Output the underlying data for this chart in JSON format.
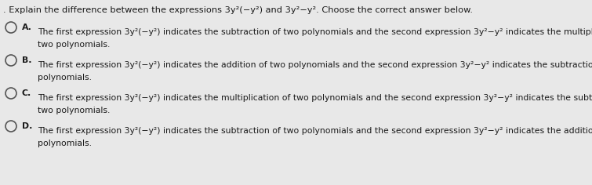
{
  "bg_color": "#e8e8e8",
  "title": ". Explain the difference between the expressions 3y²(−y²) and 3y²−y². Choose the correct answer below.",
  "options": [
    {
      "letter": "A.",
      "line1": "The first expression 3y²(−y²) indicates the subtraction of two polynomials and the second expression 3y²−y² indicates the multiplication of",
      "line2": "two polynomials."
    },
    {
      "letter": "B.",
      "line1": "The first expression 3y²(−y²) indicates the addition of two polynomials and the second expression 3y²−y² indicates the subtraction of two",
      "line2": "polynomials."
    },
    {
      "letter": "C.",
      "line1": "The first expression 3y²(−y²) indicates the multiplication of two polynomials and the second expression 3y²−y² indicates the subtraction of",
      "line2": "two polynomials."
    },
    {
      "letter": "D.",
      "line1": "The first expression 3y²(−y²) indicates the subtraction of two polynomials and the second expression 3y²−y² indicates the addition of two",
      "line2": "polynomials."
    }
  ],
  "font_size_title": 8.2,
  "font_size_body": 7.8,
  "text_color": "#1a1a1a",
  "circle_color": "#555555"
}
